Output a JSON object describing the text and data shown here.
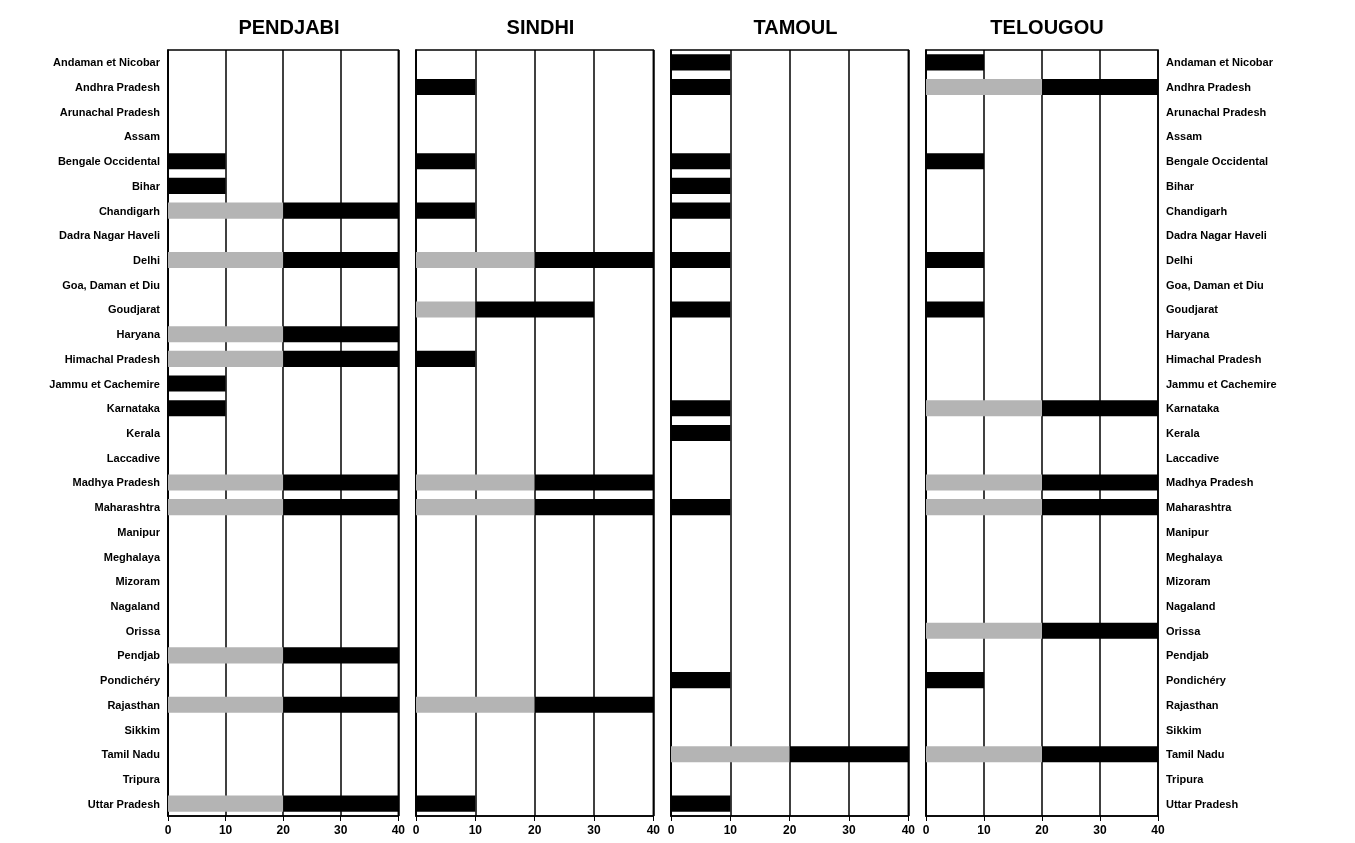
{
  "chart_data": [
    {
      "type": "bar",
      "title": "PENDJABI",
      "orientation": "horizontal",
      "stacked": true,
      "grid": "x",
      "xlim": [
        0,
        40
      ],
      "xticks": [
        0,
        10,
        20,
        30,
        40
      ],
      "categories": [
        "Andaman et Nicobar",
        "Andhra Pradesh",
        "Arunachal Pradesh",
        "Assam",
        "Bengale Occidental",
        "Bihar",
        "Chandigarh",
        "Dadra Nagar Haveli",
        "Delhi",
        "Goa, Daman et Diu",
        "Goudjarat",
        "Haryana",
        "Himachal Pradesh",
        "Jammu et Cachemire",
        "Karnataka",
        "Kerala",
        "Laccadive",
        "Madhya Pradesh",
        "Maharashtra",
        "Manipur",
        "Meghalaya",
        "Mizoram",
        "Nagaland",
        "Orissa",
        "Pendjab",
        "Pondichéry",
        "Rajasthan",
        "Sikkim",
        "Tamil Nadu",
        "Tripura",
        "Uttar Pradesh"
      ],
      "series": [
        {
          "color": "#b4b4b4",
          "values": [
            null,
            null,
            null,
            null,
            null,
            null,
            20,
            null,
            20,
            null,
            null,
            20,
            20,
            null,
            null,
            null,
            null,
            20,
            20,
            null,
            null,
            null,
            null,
            null,
            20,
            null,
            20,
            null,
            null,
            null,
            20
          ]
        },
        {
          "color": "#000000",
          "values": [
            null,
            null,
            null,
            null,
            10,
            10,
            20,
            null,
            20,
            null,
            null,
            20,
            20,
            10,
            10,
            null,
            null,
            20,
            20,
            null,
            null,
            null,
            null,
            null,
            20,
            null,
            20,
            null,
            null,
            null,
            20
          ]
        }
      ]
    },
    {
      "type": "bar",
      "title": "SINDHI",
      "orientation": "horizontal",
      "stacked": true,
      "grid": "x",
      "tick_labels": "x",
      "xlim": [
        0,
        40
      ],
      "xticks": [
        0,
        10,
        20,
        30,
        40
      ],
      "categories": [
        null,
        null,
        null,
        null,
        null,
        null,
        null,
        null,
        null,
        null,
        null,
        null,
        null,
        null,
        null,
        null,
        null,
        null,
        null,
        null,
        null,
        null,
        null,
        null,
        null,
        null,
        null,
        null,
        null,
        null,
        null
      ],
      "series": [
        {
          "color": "#b4b4b4",
          "values": [
            null,
            null,
            null,
            null,
            null,
            null,
            null,
            null,
            20,
            null,
            10,
            null,
            null,
            null,
            null,
            null,
            null,
            20,
            20,
            null,
            null,
            null,
            null,
            null,
            null,
            null,
            20,
            null,
            null,
            null,
            null
          ]
        },
        {
          "color": "#000000",
          "values": [
            null,
            10,
            null,
            null,
            10,
            null,
            10,
            null,
            20,
            null,
            20,
            null,
            10,
            null,
            null,
            null,
            null,
            20,
            20,
            null,
            null,
            null,
            null,
            null,
            null,
            null,
            20,
            null,
            null,
            null,
            10
          ]
        }
      ]
    },
    {
      "type": "bar",
      "title": "TAMOUL",
      "orientation": "horizontal",
      "stacked": true,
      "grid": "x",
      "tick_labels": "x",
      "xlim": [
        0,
        40
      ],
      "xticks": [
        0,
        10,
        20,
        30,
        40
      ],
      "categories": [
        null,
        null,
        null,
        null,
        null,
        null,
        null,
        null,
        null,
        null,
        null,
        null,
        null,
        null,
        null,
        null,
        null,
        null,
        null,
        null,
        null,
        null,
        null,
        null,
        null,
        null,
        null,
        null,
        null,
        null,
        null
      ],
      "series": [
        {
          "color": "#b4b4b4",
          "values": [
            null,
            null,
            null,
            null,
            null,
            null,
            null,
            null,
            null,
            null,
            null,
            null,
            null,
            null,
            null,
            null,
            null,
            null,
            null,
            null,
            null,
            null,
            null,
            null,
            null,
            null,
            null,
            null,
            20,
            null,
            null
          ]
        },
        {
          "color": "#000000",
          "values": [
            10,
            10,
            null,
            null,
            10,
            10,
            10,
            null,
            10,
            null,
            10,
            null,
            null,
            null,
            10,
            10,
            null,
            null,
            10,
            null,
            null,
            null,
            null,
            null,
            null,
            10,
            null,
            null,
            20,
            null,
            10
          ]
        }
      ]
    },
    {
      "type": "bar",
      "title": "TELOUGOU",
      "orientation": "horizontal",
      "stacked": true,
      "grid": "x",
      "xlim": [
        0,
        40
      ],
      "xticks": [
        0,
        10,
        20,
        30,
        40
      ],
      "categories": [
        "Andaman et Nicobar",
        "Andhra Pradesh",
        "Arunachal Pradesh",
        "Assam",
        "Bengale Occidental",
        "Bihar",
        "Chandigarh",
        "Dadra Nagar Haveli",
        "Delhi",
        "Goa, Daman et Diu",
        "Goudjarat",
        "Haryana",
        "Himachal Pradesh",
        "Jammu et Cachemire",
        "Karnataka",
        "Kerala",
        "Laccadive",
        "Madhya Pradesh",
        "Maharashtra",
        "Manipur",
        "Meghalaya",
        "Mizoram",
        "Nagaland",
        "Orissa",
        "Pendjab",
        "Pondichéry",
        "Rajasthan",
        "Sikkim",
        "Tamil Nadu",
        "Tripura",
        "Uttar Pradesh"
      ],
      "series": [
        {
          "color": "#b4b4b4",
          "values": [
            null,
            20,
            null,
            null,
            null,
            null,
            null,
            null,
            null,
            null,
            null,
            null,
            null,
            null,
            20,
            null,
            null,
            20,
            20,
            null,
            null,
            null,
            null,
            20,
            null,
            null,
            null,
            null,
            20,
            null,
            null
          ]
        },
        {
          "color": "#000000",
          "values": [
            10,
            20,
            null,
            null,
            10,
            null,
            null,
            null,
            10,
            null,
            10,
            null,
            null,
            null,
            20,
            null,
            null,
            20,
            20,
            null,
            null,
            null,
            null,
            20,
            null,
            10,
            null,
            null,
            20,
            null,
            null
          ]
        }
      ]
    }
  ]
}
